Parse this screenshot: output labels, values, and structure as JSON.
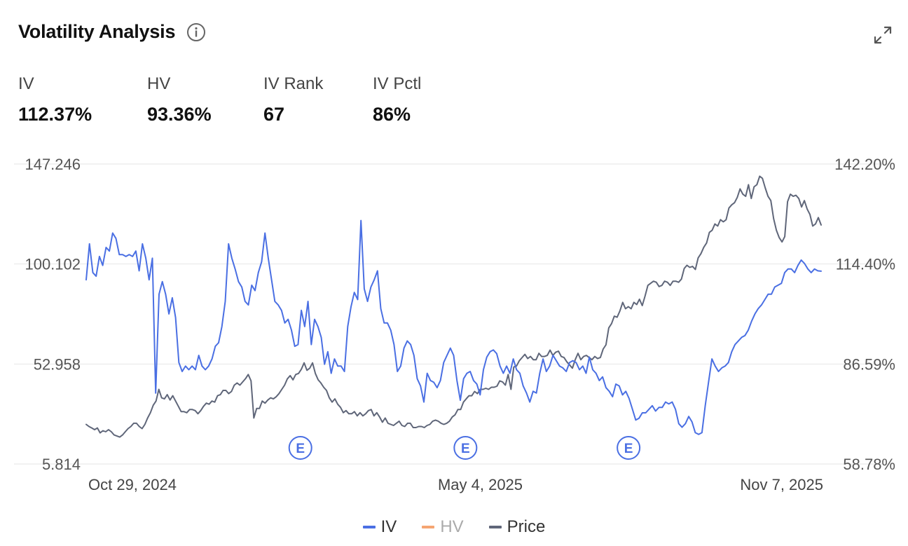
{
  "header": {
    "title": "Volatility Analysis",
    "info_icon": "info-circle-icon",
    "expand_icon": "expand-icon"
  },
  "metrics": [
    {
      "label": "IV",
      "value": "112.37%"
    },
    {
      "label": "HV",
      "value": "93.36%"
    },
    {
      "label": "IV Rank",
      "value": "67"
    },
    {
      "label": "IV Pctl",
      "value": "86%"
    }
  ],
  "colors": {
    "iv": "#4a6fe3",
    "hv": "#f5a572",
    "price": "#5f6679",
    "grid": "#e6e6e6",
    "earnings": "#4a6fe3"
  },
  "chart_data": {
    "type": "line",
    "x_start": "2024-10-29",
    "x_end": "2025-11-07",
    "x_tick_labels": [
      "Oct 29, 2024",
      "May 4, 2025",
      "Nov 7, 2025"
    ],
    "left_axis": {
      "ylim": [
        5.814,
        147.246
      ],
      "tick_labels": [
        "147.246",
        "100.102",
        "52.958",
        "5.814"
      ]
    },
    "right_axis": {
      "ylim": [
        58.78,
        142.2
      ],
      "tick_labels": [
        "142.20%",
        "114.40%",
        "86.59%",
        "58.78%"
      ]
    },
    "grid": true,
    "legend_position": "bottom",
    "earnings_markers": [
      {
        "label": "E",
        "date": "2025-02-15"
      },
      {
        "label": "E",
        "date": "2025-05-10"
      },
      {
        "label": "E",
        "date": "2025-08-01"
      }
    ],
    "series": [
      {
        "name": "IV",
        "axis": "right",
        "values": [
          110.0,
          120.0,
          112.0,
          111.0,
          116.5,
          114.0,
          119.0,
          118.0,
          123.0,
          121.5,
          117.0,
          117.0,
          116.5,
          117.0,
          116.5,
          118.0,
          112.5,
          120.0,
          116.0,
          110.0,
          116.0,
          78.5,
          106.0,
          109.5,
          106.0,
          100.5,
          105.0,
          99.5,
          87.0,
          84.5,
          86.0,
          85.0,
          86.0,
          85.0,
          89.0,
          86.0,
          85.0,
          86.0,
          88.0,
          91.5,
          92.5,
          97.0,
          104.0,
          120.0,
          116.0,
          113.0,
          109.5,
          108.0,
          104.0,
          103.0,
          108.5,
          107.0,
          112.0,
          115.0,
          123.0,
          116.0,
          110.0,
          104.0,
          103.0,
          101.5,
          98.0,
          99.0,
          96.0,
          91.5,
          92.0,
          101.5,
          97.0,
          104.0,
          92.0,
          99.0,
          97.0,
          94.0,
          86.5,
          90.0,
          84.0,
          88.0,
          86.0,
          86.0,
          84.5,
          97.0,
          102.5,
          106.5,
          104.5,
          126.5,
          107.5,
          104.0,
          108.0,
          110.0,
          112.5,
          102.0,
          98.0,
          98.0,
          96.0,
          92.0,
          84.5,
          86.0,
          91.0,
          93.0,
          92.0,
          89.0,
          82.5,
          80.5,
          76.0,
          84.0,
          82.0,
          81.5,
          80.0,
          82.0,
          87.0,
          89.0,
          91.0,
          89.0,
          82.0,
          76.5,
          82.5,
          84.0,
          84.5,
          82.0,
          81.0,
          78.0,
          85.0,
          88.5,
          90.0,
          90.5,
          89.5,
          86.0,
          84.0,
          86.0,
          84.0,
          88.0,
          85.0,
          84.0,
          80.5,
          78.5,
          76.0,
          79.0,
          78.5,
          84.0,
          88.0,
          84.5,
          86.0,
          89.0,
          87.5,
          86.0,
          85.5,
          84.5,
          87.0,
          87.5,
          87.0,
          85.0,
          86.0,
          84.0,
          88.5,
          85.0,
          84.0,
          82.0,
          83.0,
          80.0,
          79.0,
          77.5,
          81.0,
          80.5,
          78.0,
          79.0,
          77.0,
          74.0,
          71.0,
          71.5,
          73.0,
          73.0,
          74.0,
          75.0,
          73.5,
          74.5,
          74.5,
          76.0,
          75.5,
          76.0,
          74.0,
          70.0,
          69.0,
          70.0,
          72.0,
          70.5,
          67.5,
          67.0,
          67.5,
          75.0,
          81.5,
          88.0,
          86.0,
          84.5,
          85.5,
          86.0,
          87.0,
          90.0,
          92.0,
          93.0,
          94.0,
          94.5,
          96.0,
          98.5,
          100.5,
          102.0,
          103.0,
          104.5,
          106.0,
          106.0,
          108.0,
          108.5,
          109.0,
          112.0,
          113.0,
          113.0,
          112.0,
          114.0,
          115.5,
          114.5,
          113.0,
          112.0,
          113.0,
          112.5,
          112.4
        ]
      },
      {
        "name": "HV",
        "axis": "left",
        "values": []
      },
      {
        "name": "Price",
        "axis": "left",
        "values": [
          24.5,
          23.5,
          22.8,
          22.0,
          22.8,
          20.5,
          21.5,
          21.0,
          22.0,
          21.0,
          19.5,
          19.0,
          18.5,
          19.5,
          21.0,
          22.5,
          23.5,
          25.0,
          25.0,
          23.5,
          22.5,
          24.5,
          27.5,
          30.0,
          33.5,
          35.5,
          41.0,
          37.0,
          36.5,
          38.5,
          36.0,
          38.0,
          35.5,
          33.0,
          30.5,
          30.5,
          30.0,
          31.5,
          31.5,
          31.0,
          29.5,
          31.0,
          33.0,
          34.5,
          34.0,
          35.5,
          35.0,
          38.0,
          38.5,
          40.5,
          40.5,
          39.0,
          40.0,
          43.0,
          44.0,
          43.0,
          44.5,
          46.0,
          48.0,
          45.0,
          27.5,
          32.0,
          32.0,
          35.5,
          34.5,
          36.0,
          37.0,
          36.5,
          37.5,
          39.0,
          41.0,
          43.0,
          46.0,
          47.5,
          45.5,
          48.0,
          48.5,
          50.5,
          53.5,
          50.0,
          51.0,
          53.5,
          48.5,
          45.5,
          44.0,
          42.0,
          40.5,
          37.0,
          35.0,
          36.5,
          34.0,
          32.5,
          30.0,
          31.0,
          29.5,
          29.5,
          30.5,
          28.5,
          30.0,
          28.5,
          29.5,
          31.0,
          31.5,
          28.5,
          30.0,
          28.0,
          25.5,
          27.5,
          25.0,
          24.5,
          24.0,
          25.0,
          26.0,
          24.0,
          23.5,
          25.0,
          25.0,
          23.0,
          23.0,
          23.5,
          23.5,
          23.0,
          24.0,
          24.5,
          26.0,
          26.5,
          26.0,
          25.0,
          24.5,
          25.0,
          26.0,
          28.0,
          29.0,
          31.5,
          31.5,
          35.0,
          36.5,
          38.0,
          38.0,
          40.0,
          39.0,
          41.0,
          41.0,
          41.5,
          41.0,
          42.0,
          42.0,
          42.5,
          45.0,
          44.5,
          43.0,
          48.0,
          41.0,
          51.5,
          52.0,
          54.5,
          56.0,
          57.5,
          55.5,
          56.5,
          55.0,
          55.0,
          58.0,
          56.5,
          56.5,
          57.0,
          59.5,
          57.0,
          58.5,
          59.0,
          56.5,
          56.0,
          54.0,
          52.5,
          51.0,
          55.0,
          58.0,
          55.0,
          56.5,
          57.0,
          56.0,
          55.0,
          56.5,
          55.5,
          56.0,
          60.0,
          62.0,
          70.0,
          72.0,
          75.5,
          75.0,
          78.0,
          82.0,
          79.0,
          80.0,
          79.0,
          82.0,
          81.0,
          83.5,
          80.5,
          85.0,
          90.0,
          91.0,
          92.0,
          91.5,
          89.5,
          90.0,
          92.0,
          91.5,
          90.0,
          92.0,
          92.0,
          91.5,
          93.0,
          98.0,
          99.5,
          98.5,
          99.0,
          97.5,
          103.0,
          105.0,
          108.0,
          110.0,
          115.0,
          116.0,
          119.0,
          118.0,
          121.0,
          120.0,
          121.0,
          126.5,
          128.0,
          129.0,
          131.5,
          135.5,
          133.0,
          132.0,
          137.5,
          131.0,
          136.5,
          137.5,
          141.5,
          140.5,
          136.0,
          132.0,
          130.0,
          121.5,
          116.0,
          112.5,
          110.5,
          113.0,
          129.5,
          133.0,
          132.0,
          132.5,
          131.0,
          127.0,
          130.0,
          126.0,
          123.5,
          118.0,
          119.0,
          122.0,
          118.5
        ]
      }
    ]
  },
  "legend": [
    {
      "name": "IV",
      "color": "#4a6fe3",
      "text_color": "#333333"
    },
    {
      "name": "HV",
      "color": "#f5a572",
      "text_color": "#aaaaaa"
    },
    {
      "name": "Price",
      "color": "#5f6679",
      "text_color": "#333333"
    }
  ]
}
